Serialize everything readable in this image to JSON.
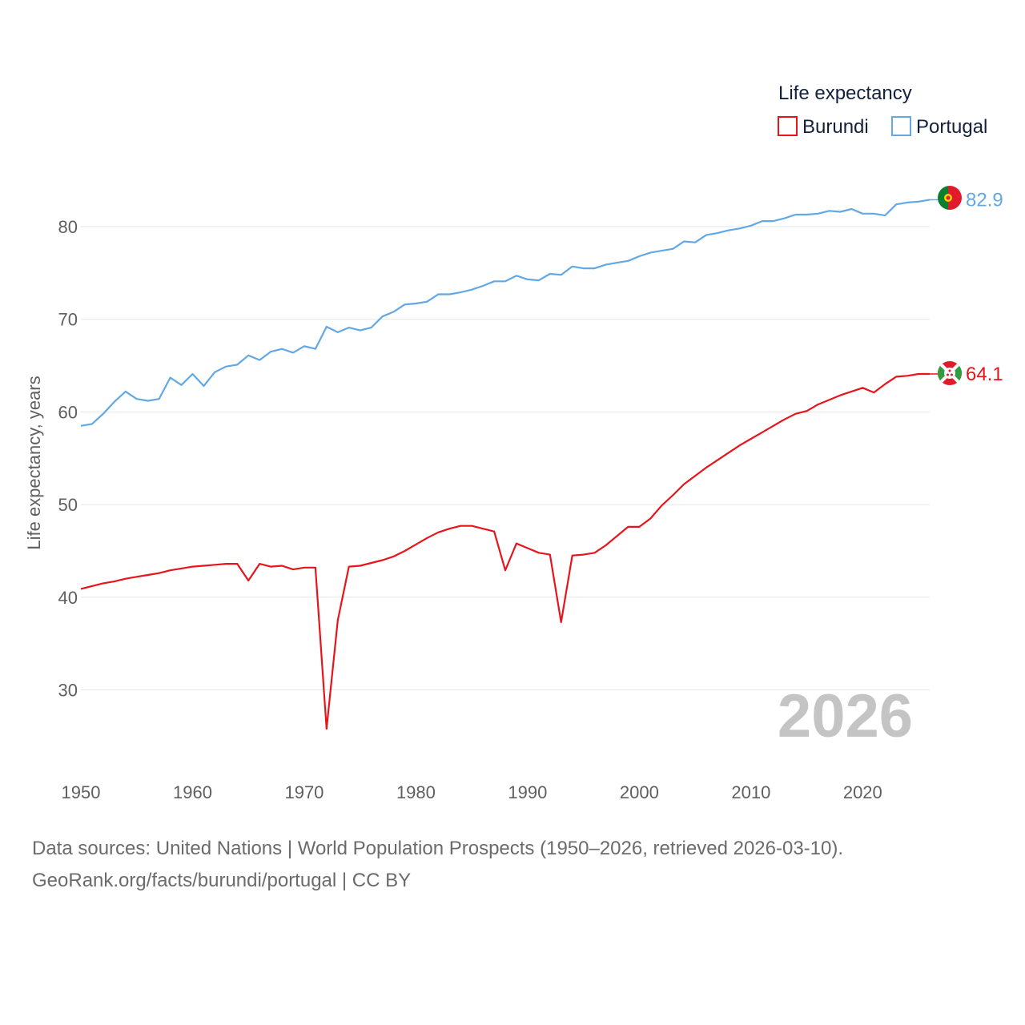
{
  "chart_data": {
    "type": "line",
    "ylabel": "Life expectancy, years",
    "xlabel": "",
    "xlim": [
      1950,
      2026
    ],
    "ylim": [
      22,
      90
    ],
    "yticks": [
      30,
      40,
      50,
      60,
      70,
      80
    ],
    "xticks": [
      1950,
      1960,
      1970,
      1980,
      1990,
      2000,
      2010,
      2020
    ],
    "ytick_labels": [
      "30",
      "40",
      "50",
      "60",
      "70",
      "80"
    ],
    "xtick_labels": [
      "1950",
      "1960",
      "1970",
      "1980",
      "1990",
      "2000",
      "2010",
      "2020"
    ],
    "grid": "horizontal",
    "legend": {
      "title": "Life expectancy",
      "position": "top-right"
    },
    "year_label": "2026",
    "series": [
      {
        "name": "Burundi",
        "color": "#e8141c",
        "end_label": "64.1",
        "flag": "burundi-flag",
        "x": [
          1950,
          1951,
          1952,
          1953,
          1954,
          1955,
          1956,
          1957,
          1958,
          1959,
          1960,
          1961,
          1962,
          1963,
          1964,
          1965,
          1966,
          1967,
          1968,
          1969,
          1970,
          1971,
          1972,
          1973,
          1974,
          1975,
          1976,
          1977,
          1978,
          1979,
          1980,
          1981,
          1982,
          1983,
          1984,
          1985,
          1986,
          1987,
          1988,
          1989,
          1990,
          1991,
          1992,
          1993,
          1994,
          1995,
          1996,
          1997,
          1998,
          1999,
          2000,
          2001,
          2002,
          2003,
          2004,
          2005,
          2006,
          2007,
          2008,
          2009,
          2010,
          2011,
          2012,
          2013,
          2014,
          2015,
          2016,
          2017,
          2018,
          2019,
          2020,
          2021,
          2022,
          2023,
          2024,
          2025,
          2026
        ],
        "values": [
          40.9,
          41.2,
          41.5,
          41.7,
          42.0,
          42.2,
          42.4,
          42.6,
          42.9,
          43.1,
          43.3,
          43.4,
          43.5,
          43.6,
          43.6,
          41.8,
          43.6,
          43.3,
          43.4,
          43.0,
          43.2,
          43.2,
          25.8,
          37.5,
          43.3,
          43.4,
          43.7,
          44.0,
          44.4,
          45.0,
          45.7,
          46.4,
          47.0,
          47.4,
          47.7,
          47.7,
          47.4,
          47.1,
          42.9,
          45.8,
          45.3,
          44.8,
          44.6,
          37.3,
          44.5,
          44.6,
          44.8,
          45.6,
          46.6,
          47.6,
          47.6,
          48.5,
          49.9,
          51.0,
          52.2,
          53.1,
          54.0,
          54.8,
          55.6,
          56.4,
          57.1,
          57.8,
          58.5,
          59.2,
          59.8,
          60.1,
          60.8,
          61.3,
          61.8,
          62.2,
          62.6,
          62.1,
          63.0,
          63.8,
          63.9,
          64.1,
          64.1
        ]
      },
      {
        "name": "Portugal",
        "color": "#62a8e5",
        "end_label": "82.9",
        "flag": "portugal-flag",
        "x": [
          1950,
          1951,
          1952,
          1953,
          1954,
          1955,
          1956,
          1957,
          1958,
          1959,
          1960,
          1961,
          1962,
          1963,
          1964,
          1965,
          1966,
          1967,
          1968,
          1969,
          1970,
          1971,
          1972,
          1973,
          1974,
          1975,
          1976,
          1977,
          1978,
          1979,
          1980,
          1981,
          1982,
          1983,
          1984,
          1985,
          1986,
          1987,
          1988,
          1989,
          1990,
          1991,
          1992,
          1993,
          1994,
          1995,
          1996,
          1997,
          1998,
          1999,
          2000,
          2001,
          2002,
          2003,
          2004,
          2005,
          2006,
          2007,
          2008,
          2009,
          2010,
          2011,
          2012,
          2013,
          2014,
          2015,
          2016,
          2017,
          2018,
          2019,
          2020,
          2021,
          2022,
          2023,
          2024,
          2025,
          2026
        ],
        "values": [
          58.5,
          58.7,
          59.8,
          61.1,
          62.2,
          61.4,
          61.2,
          61.4,
          63.7,
          62.9,
          64.1,
          62.8,
          64.3,
          64.9,
          65.1,
          66.1,
          65.6,
          66.5,
          66.8,
          66.4,
          67.1,
          66.8,
          69.2,
          68.6,
          69.1,
          68.8,
          69.1,
          70.3,
          70.8,
          71.6,
          71.7,
          71.9,
          72.7,
          72.7,
          72.9,
          73.2,
          73.6,
          74.1,
          74.1,
          74.7,
          74.3,
          74.2,
          74.9,
          74.8,
          75.7,
          75.5,
          75.5,
          75.9,
          76.1,
          76.3,
          76.8,
          77.2,
          77.4,
          77.6,
          78.4,
          78.3,
          79.1,
          79.3,
          79.6,
          79.8,
          80.1,
          80.6,
          80.6,
          80.9,
          81.3,
          81.3,
          81.4,
          81.7,
          81.6,
          81.9,
          81.4,
          81.4,
          81.2,
          82.4,
          82.6,
          82.7,
          82.9
        ]
      }
    ]
  },
  "footer": {
    "source_line": "Data sources: United Nations | World Population Prospects (1950–2026, retrieved 2026-03-10).",
    "site_line": "GeoRank.org/facts/burundi/portugal | CC BY"
  }
}
